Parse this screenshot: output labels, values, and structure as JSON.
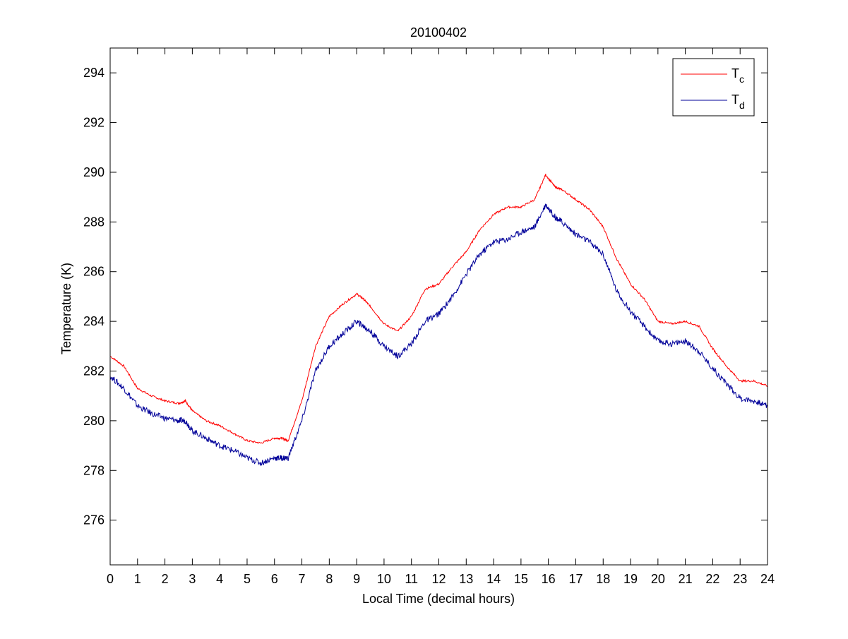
{
  "chart_data": {
    "type": "line",
    "title": "20100402",
    "xlabel": "Local Time (decimal hours)",
    "ylabel": "Temperature (K)",
    "xlim": [
      0,
      24
    ],
    "ylim": [
      274.2,
      295
    ],
    "x_ticks": [
      0,
      1,
      2,
      3,
      4,
      5,
      6,
      7,
      8,
      9,
      10,
      11,
      12,
      13,
      14,
      15,
      16,
      17,
      18,
      19,
      20,
      21,
      22,
      23,
      24
    ],
    "x_tick_labels": [
      "0",
      "1",
      "2",
      "3",
      "4",
      "5",
      "6",
      "7",
      "8",
      "9",
      "10",
      "11",
      "12",
      "13",
      "14",
      "15",
      "16",
      "17",
      "18",
      "19",
      "20",
      "21",
      "22",
      "23",
      "24"
    ],
    "y_ticks": [
      276,
      278,
      280,
      282,
      284,
      286,
      288,
      290,
      292,
      294
    ],
    "y_tick_labels": [
      "276",
      "278",
      "280",
      "282",
      "284",
      "286",
      "288",
      "290",
      "292",
      "294"
    ],
    "grid": false,
    "legend_position": "top-right",
    "series": [
      {
        "name": "Tc",
        "legend_main": "T",
        "legend_sub": "c",
        "color": "#ff0000",
        "x": [
          0,
          0.5,
          1,
          1.5,
          2,
          2.5,
          2.75,
          3,
          3.5,
          4,
          4.5,
          5,
          5.5,
          6,
          6.25,
          6.5,
          7,
          7.5,
          8,
          8.5,
          9,
          9.25,
          9.5,
          10,
          10.5,
          11,
          11.5,
          12,
          12.5,
          13,
          13.5,
          14,
          14.5,
          15,
          15.5,
          15.9,
          16.25,
          16.5,
          17,
          17.5,
          18,
          18.5,
          19,
          19.5,
          20,
          20.5,
          21,
          21.5,
          22,
          22.5,
          23,
          23.5,
          24
        ],
        "y": [
          282.6,
          282.2,
          281.3,
          281.0,
          280.8,
          280.7,
          280.8,
          280.4,
          280.0,
          279.8,
          279.5,
          279.2,
          279.1,
          279.3,
          279.3,
          279.2,
          280.8,
          283.0,
          284.2,
          284.7,
          285.1,
          284.9,
          284.6,
          283.9,
          283.6,
          284.2,
          285.3,
          285.5,
          286.2,
          286.8,
          287.7,
          288.3,
          288.6,
          288.6,
          288.9,
          289.9,
          289.4,
          289.3,
          288.9,
          288.5,
          287.8,
          286.5,
          285.5,
          284.9,
          284.0,
          283.9,
          284.0,
          283.8,
          282.9,
          282.2,
          281.6,
          281.6,
          281.4
        ]
      },
      {
        "name": "Td",
        "legend_main": "T",
        "legend_sub": "d",
        "color": "#000099",
        "x": [
          0,
          0.5,
          1,
          1.5,
          2,
          2.5,
          2.75,
          3,
          3.5,
          4,
          4.5,
          5,
          5.5,
          6,
          6.25,
          6.5,
          7,
          7.5,
          8,
          8.5,
          9,
          9.25,
          9.5,
          10,
          10.5,
          11,
          11.5,
          12,
          12.5,
          13,
          13.5,
          14,
          14.5,
          15,
          15.5,
          15.9,
          16.25,
          16.5,
          17,
          17.5,
          18,
          18.5,
          19,
          19.5,
          20,
          20.5,
          21,
          21.5,
          22,
          22.5,
          23,
          23.5,
          24
        ],
        "y": [
          281.8,
          281.3,
          280.6,
          280.3,
          280.1,
          280.0,
          280.0,
          279.6,
          279.3,
          279.0,
          278.8,
          278.5,
          278.3,
          278.5,
          278.5,
          278.5,
          280.0,
          282.0,
          283.0,
          283.5,
          284.0,
          283.8,
          283.6,
          283.0,
          282.6,
          283.1,
          284.0,
          284.3,
          285.0,
          285.9,
          286.7,
          287.2,
          287.3,
          287.6,
          287.8,
          288.7,
          288.2,
          288.0,
          287.5,
          287.2,
          286.7,
          285.2,
          284.4,
          283.8,
          283.2,
          283.1,
          283.2,
          282.8,
          282.1,
          281.5,
          280.9,
          280.8,
          280.6
        ]
      }
    ]
  }
}
